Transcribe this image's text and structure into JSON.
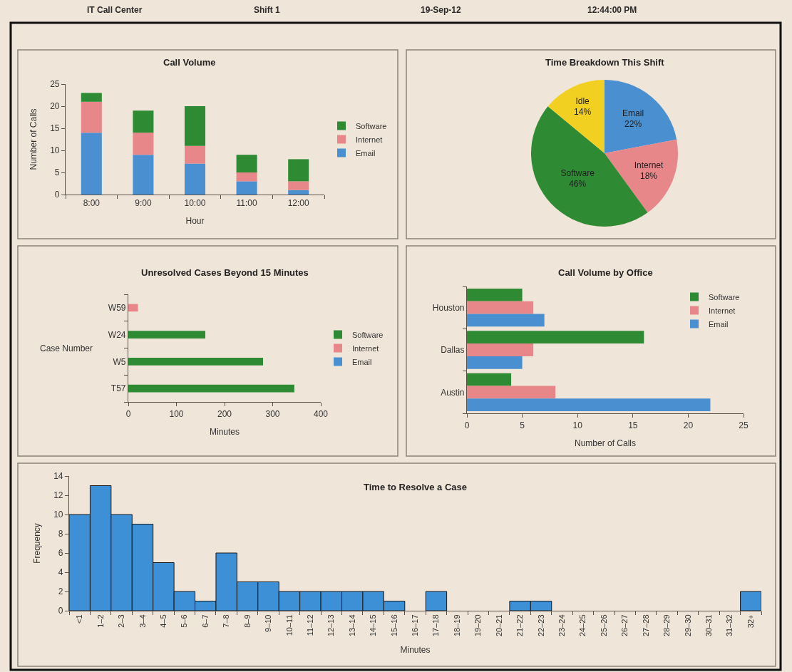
{
  "chart_data": [
    {
      "type": "other",
      "annotations": [
        "IT Call Center",
        "Shift 1",
        "19-Sep-12",
        "12:44:00 PM"
      ]
    },
    {
      "type": "bar",
      "title": "Call Volume",
      "categories": [
        "8:00",
        "9:00",
        "10:00",
        "11:00",
        "12:00"
      ],
      "stacked": true,
      "series": [
        {
          "name": "Email",
          "color": "#4a90d0",
          "values": [
            14,
            9,
            7,
            3,
            1
          ]
        },
        {
          "name": "Internet",
          "color": "#e8878a",
          "values": [
            7,
            5,
            4,
            2,
            2
          ]
        },
        {
          "name": "Software",
          "color": "#2e8b34",
          "values": [
            2,
            5,
            9,
            4,
            5
          ]
        }
      ],
      "ylim": [
        0,
        25
      ],
      "yticks": [
        0,
        5,
        10,
        15,
        20,
        25
      ],
      "xlabel": "Hour",
      "ylabel": "Number of Calls",
      "legend": "right"
    },
    {
      "type": "pie",
      "title": "Time Breakdown This Shift",
      "categories": [
        "Email",
        "Internet",
        "Software",
        "Idle"
      ],
      "values": [
        22,
        18,
        46,
        14
      ],
      "value_labels": [
        "22%",
        "18%",
        "46%",
        "14%"
      ],
      "colors": [
        "#4a90d0",
        "#e8878a",
        "#2e8b34",
        "#f2d022"
      ]
    },
    {
      "type": "bar",
      "orientation": "horizontal",
      "stacked": true,
      "title": "Unresolved Cases Beyond 15 Minutes",
      "categories": [
        "W59",
        "W24",
        "W5",
        "T57"
      ],
      "series": [
        {
          "name": "Email",
          "color": "#4a90d0",
          "values": [
            null,
            null,
            null,
            null
          ]
        },
        {
          "name": "Internet",
          "color": "#e8878a",
          "values": [
            20,
            null,
            null,
            null
          ]
        },
        {
          "name": "Software",
          "color": "#2e8b34",
          "values": [
            null,
            160,
            280,
            345
          ]
        }
      ],
      "xlim": [
        0,
        400
      ],
      "xticks": [
        0,
        100,
        200,
        300,
        400
      ],
      "xlabel": "Minutes",
      "ylabel": "Case Number",
      "legend": "right"
    },
    {
      "type": "bar",
      "orientation": "horizontal",
      "title": "Call Volume by Office",
      "categories": [
        "Houston",
        "Dallas",
        "Austin"
      ],
      "series": [
        {
          "name": "Software",
          "color": "#2e8b34",
          "values": [
            5,
            16,
            4
          ]
        },
        {
          "name": "Internet",
          "color": "#e8878a",
          "values": [
            6,
            6,
            8
          ]
        },
        {
          "name": "Email",
          "color": "#4a90d0",
          "values": [
            7,
            5,
            22
          ]
        }
      ],
      "xlim": [
        0,
        25
      ],
      "xticks": [
        0,
        5,
        10,
        15,
        20,
        25
      ],
      "xlabel": "Number of Calls",
      "legend": "top right"
    },
    {
      "type": "bar",
      "title": "Time to Resolve a Case",
      "categories": [
        "<1",
        "1–2",
        "2–3",
        "3–4",
        "4–5",
        "5–6",
        "6–7",
        "7–8",
        "8–9",
        "9–10",
        "10–11",
        "11–12",
        "12–13",
        "13–14",
        "14–15",
        "15–16",
        "16–17",
        "17–18",
        "18–19",
        "19–20",
        "20–21",
        "21–22",
        "22–23",
        "23–24",
        "24–25",
        "25–26",
        "26–27",
        "27–28",
        "28–29",
        "29–30",
        "30–31",
        "31–32",
        "32+"
      ],
      "values": [
        10,
        13,
        10,
        9,
        5,
        2,
        1,
        6,
        3,
        3,
        2,
        2,
        2,
        2,
        2,
        1,
        0,
        2,
        0,
        0,
        0,
        1,
        1,
        0,
        0,
        0,
        0,
        0,
        0,
        0,
        0,
        0,
        2
      ],
      "color": "#3d8fd6",
      "ylim": [
        0,
        14
      ],
      "yticks": [
        0,
        2,
        4,
        6,
        8,
        10,
        12,
        14
      ],
      "xlabel": "Minutes",
      "ylabel": "Frequency"
    }
  ]
}
